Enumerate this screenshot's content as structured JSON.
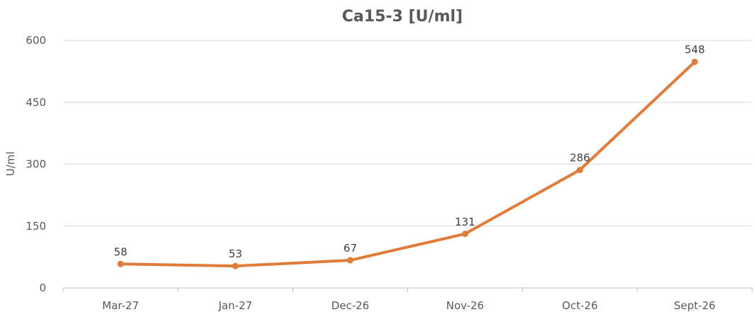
{
  "chart_data": {
    "type": "line",
    "title": "Ca15-3 [U/ml]",
    "xlabel": "",
    "ylabel": "U/ml",
    "categories": [
      "Mar-27",
      "Jan-27",
      "Dec-26",
      "Nov-26",
      "Oct-26",
      "Sept-26"
    ],
    "series": [
      {
        "values": [
          58,
          53,
          67,
          131,
          286,
          548
        ],
        "color": "#e07b39"
      }
    ],
    "ylim": [
      0,
      600
    ],
    "yticks": [
      0,
      150,
      300,
      450,
      600
    ],
    "grid": true,
    "data_labels": true,
    "legend": "none"
  },
  "colors": {
    "line": "#e07b39",
    "text": "#595959",
    "grid": "#d9d9d9"
  }
}
